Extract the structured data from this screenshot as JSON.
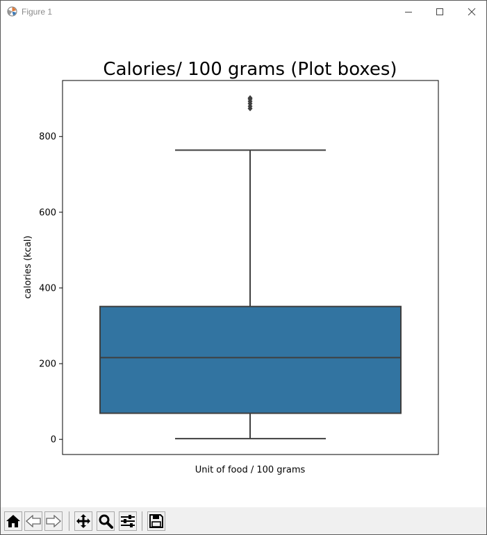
{
  "window": {
    "title": "Figure 1",
    "icons": [
      "figure-app-icon",
      "minimize-icon",
      "maximize-icon",
      "close-icon"
    ]
  },
  "chart_data": {
    "type": "box",
    "title": "Calories/ 100 grams (Plot boxes)",
    "xlabel": "Unit of food / 100 grams",
    "ylabel": "calories (kcal)",
    "ylim": [
      -40,
      948
    ],
    "yticks": [
      0,
      200,
      400,
      600,
      800
    ],
    "grid": false,
    "color": "#3274a1",
    "box": {
      "whisker_low": 2,
      "q1": 69,
      "median": 216,
      "q3": 351,
      "whisker_high": 764,
      "outliers": [
        874,
        880,
        887,
        893,
        899,
        902
      ]
    }
  },
  "toolbar": {
    "buttons": [
      "home-icon",
      "back-icon",
      "forward-icon",
      "pan-icon",
      "zoom-icon",
      "configure-subplots-icon",
      "save-icon"
    ]
  }
}
